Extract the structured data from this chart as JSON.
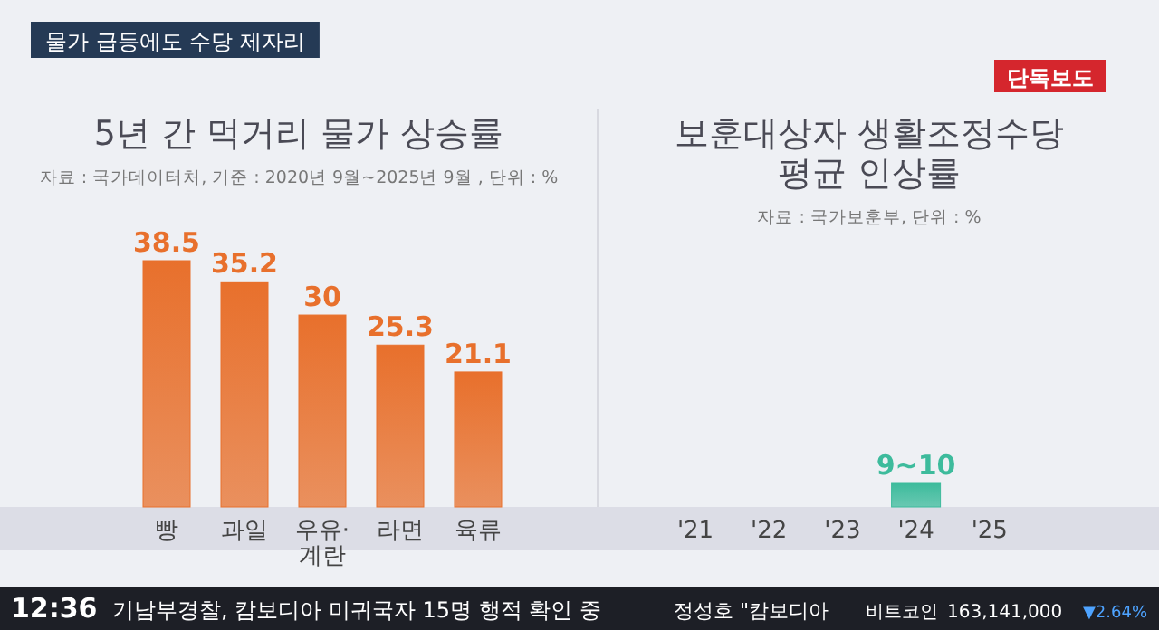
{
  "chart_data": [
    {
      "type": "bar",
      "title": "5년 간 먹거리 물가 상승률",
      "subtitle": "자료 : 국가데이터처, 기준 : 2020년 9월~2025년 9월 , 단위 : %",
      "categories": [
        "빵",
        "과일",
        "우유·계란",
        "라면",
        "육류"
      ],
      "values": [
        38.5,
        35.2,
        30,
        25.3,
        21.1
      ],
      "color": "#e8702c",
      "data_labels": true,
      "annotations": [
        "물가 급등에도 수당 제자리",
        "12:36",
        "기남부경찰, 캄보디아 미귀국자 15명 행적 확인 중",
        "정성호 \"캄보디아",
        "비트코인",
        "163,141,000",
        "▼2.64%"
      ]
    },
    {
      "type": "bar",
      "title": "보훈대상자 생활조정수당 평균 인상률",
      "subtitle": "자료 : 국가보훈부, 단위 : %",
      "categories": [
        "'21",
        "'22",
        "'23",
        "'24",
        "'25"
      ],
      "values": [
        null,
        null,
        null,
        10,
        null
      ],
      "value_labels": [
        null,
        null,
        null,
        "9~10",
        null
      ],
      "color": "#3dbb9c",
      "annotations": [
        "단독보도"
      ]
    }
  ]
}
